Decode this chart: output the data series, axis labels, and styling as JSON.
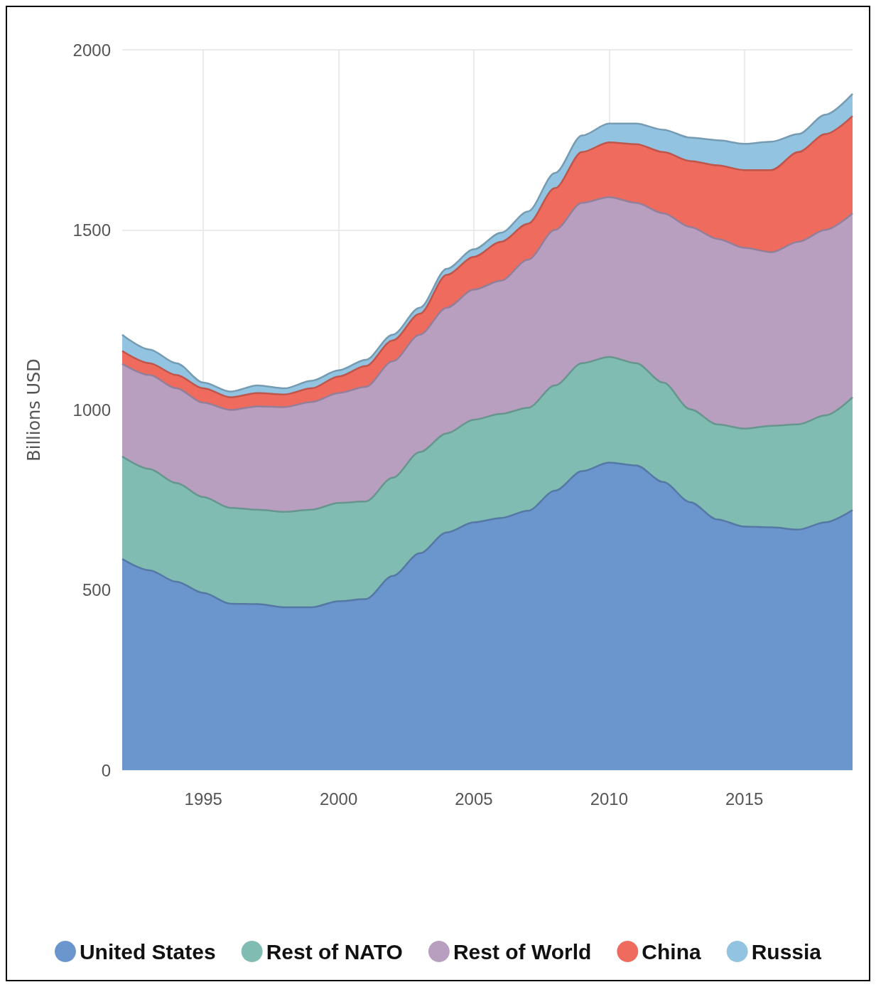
{
  "chart_data": {
    "type": "area",
    "stacked": true,
    "ylabel": "Billions USD",
    "x": [
      1992,
      1993,
      1994,
      1995,
      1996,
      1997,
      1998,
      1999,
      2000,
      2001,
      2002,
      2003,
      2004,
      2005,
      2006,
      2007,
      2008,
      2009,
      2010,
      2011,
      2012,
      2013,
      2014,
      2015,
      2016,
      2017,
      2018,
      2019
    ],
    "xlim": [
      1992,
      2019
    ],
    "xticks": [
      1995,
      2000,
      2005,
      2010,
      2015
    ],
    "ylim": [
      0,
      2000
    ],
    "yticks": [
      0,
      500,
      1000,
      1500,
      2000
    ],
    "grid": true,
    "legend": "bottom",
    "marker": "none",
    "series": [
      {
        "name": "United States",
        "color": "#6a96cd",
        "values": [
          586,
          555,
          523,
          492,
          462,
          461,
          452,
          452,
          469,
          475,
          539,
          602,
          660,
          688,
          700,
          720,
          776,
          830,
          854,
          846,
          800,
          744,
          696,
          676,
          674,
          668,
          688,
          722
        ]
      },
      {
        "name": "Rest of NATO",
        "color": "#80bcb2",
        "values": [
          285,
          281,
          274,
          266,
          266,
          262,
          265,
          271,
          273,
          271,
          273,
          281,
          275,
          285,
          289,
          286,
          292,
          300,
          293,
          284,
          276,
          258,
          264,
          272,
          282,
          292,
          297,
          313
        ]
      },
      {
        "name": "Rest of World",
        "color": "#b89fc0",
        "values": [
          257,
          261,
          263,
          262,
          272,
          287,
          291,
          299,
          305,
          318,
          323,
          326,
          349,
          361,
          370,
          411,
          432,
          445,
          444,
          445,
          470,
          506,
          515,
          502,
          482,
          507,
          515,
          511
        ]
      },
      {
        "name": "China",
        "color": "#ef6b5e",
        "values": [
          36,
          33,
          37,
          40,
          35,
          37,
          35,
          38,
          46,
          58,
          58,
          58,
          91,
          91,
          108,
          100,
          116,
          141,
          152,
          163,
          170,
          183,
          204,
          216,
          228,
          249,
          266,
          270
        ]
      },
      {
        "name": "Russia",
        "color": "#92c3e0",
        "values": [
          45,
          38,
          33,
          16,
          16,
          21,
          17,
          21,
          17,
          17,
          16,
          17,
          17,
          21,
          25,
          34,
          42,
          46,
          52,
          57,
          62,
          65,
          70,
          73,
          79,
          50,
          54,
          62
        ]
      }
    ]
  }
}
